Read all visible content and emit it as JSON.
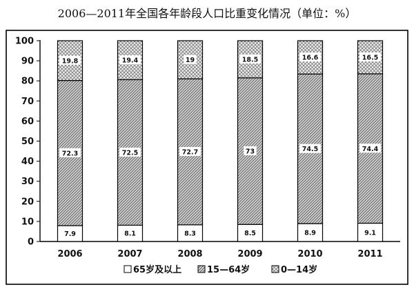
{
  "chart_data": {
    "type": "bar",
    "stacked": true,
    "title": "2006—2011年全国各年龄段人口比重变化情况（单位：%）",
    "categories": [
      "2006",
      "2007",
      "2008",
      "2009",
      "2010",
      "2011"
    ],
    "series": [
      {
        "name": "65岁及以上",
        "values": [
          7.9,
          8.1,
          8.3,
          8.5,
          8.9,
          9.1
        ],
        "pattern": "white"
      },
      {
        "name": "15—64岁",
        "values": [
          72.3,
          72.5,
          72.7,
          73,
          74.5,
          74.4
        ],
        "pattern": "diagonal"
      },
      {
        "name": "0—14岁",
        "values": [
          19.8,
          19.4,
          19,
          18.5,
          16.6,
          16.5
        ],
        "pattern": "crosshatch"
      }
    ],
    "ylim": [
      0,
      100
    ],
    "yticks": [
      0,
      10,
      20,
      30,
      40,
      50,
      60,
      70,
      80,
      90,
      100
    ],
    "grid": false,
    "legend_position": "bottom"
  }
}
